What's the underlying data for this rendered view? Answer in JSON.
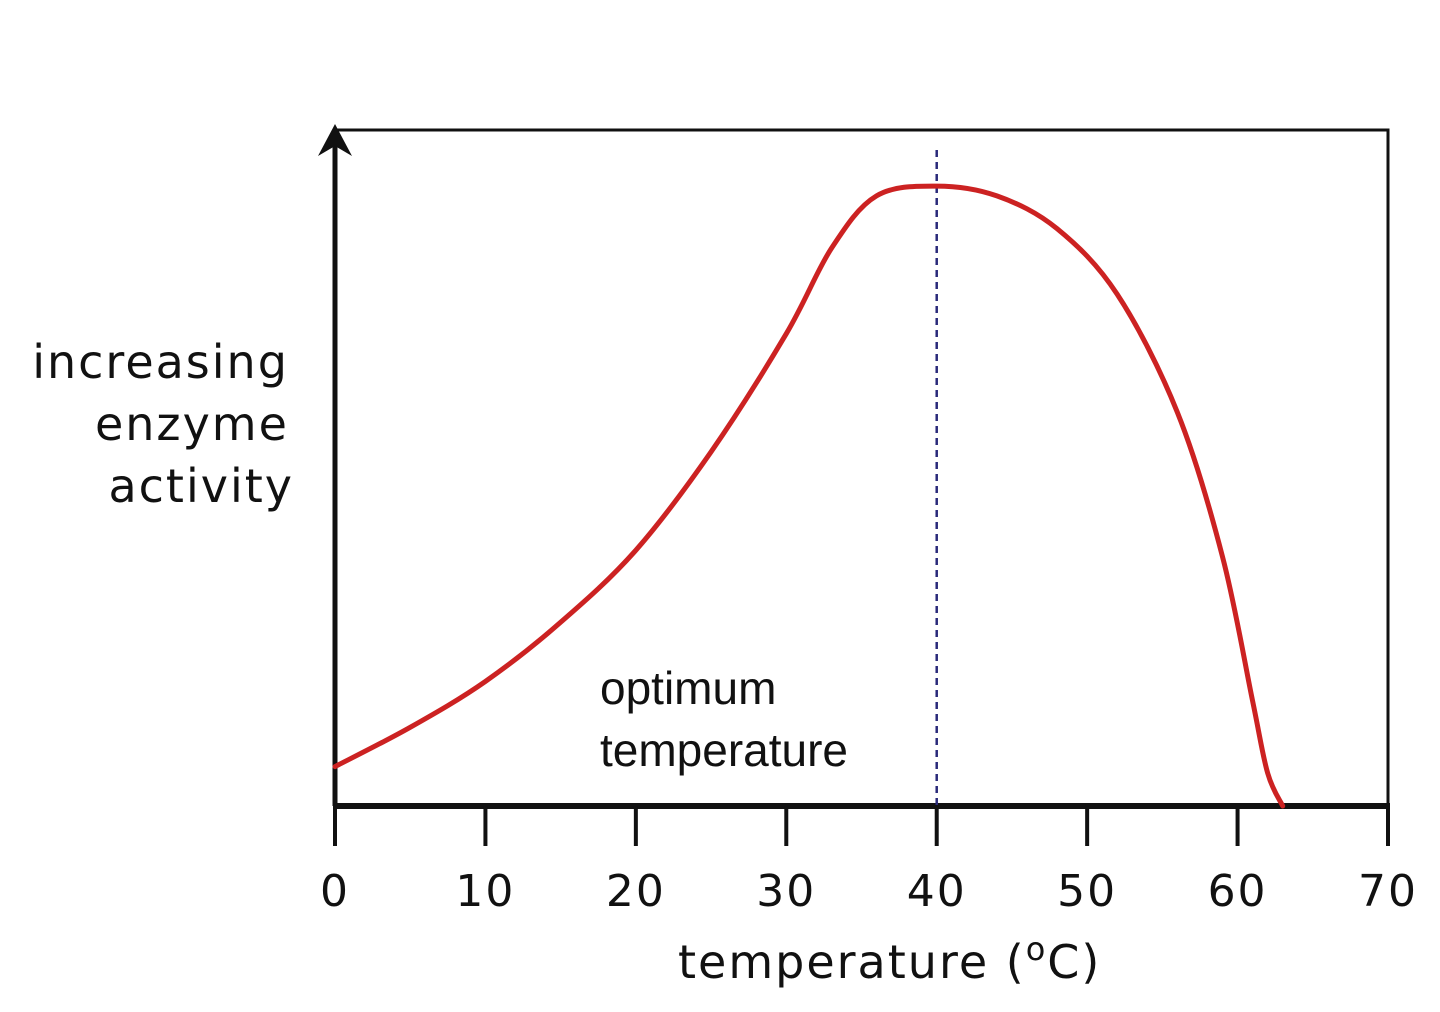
{
  "chart_data": {
    "type": "line",
    "xlabel": {
      "prefix": "temperature (",
      "superscript": "o",
      "suffix": "C)"
    },
    "ylabel_lines": [
      "increasing",
      "enzyme",
      "activity"
    ],
    "xlim": [
      0,
      70
    ],
    "ylim": [
      0,
      100
    ],
    "x_ticks": [
      0,
      10,
      20,
      30,
      40,
      50,
      60,
      70
    ],
    "x_tick_labels": [
      "0",
      "10",
      "20",
      "30",
      "40",
      "50",
      "60",
      "70"
    ],
    "grid": false,
    "series": [
      {
        "color": "#cc2222",
        "points": [
          [
            0,
            6
          ],
          [
            5,
            12
          ],
          [
            10,
            19
          ],
          [
            15,
            28
          ],
          [
            20,
            39
          ],
          [
            25,
            54
          ],
          [
            30,
            72
          ],
          [
            33,
            85
          ],
          [
            36,
            93
          ],
          [
            40,
            94.5
          ],
          [
            44,
            93
          ],
          [
            48,
            88
          ],
          [
            52,
            78
          ],
          [
            56,
            60
          ],
          [
            59,
            38
          ],
          [
            61,
            16
          ],
          [
            62,
            5
          ],
          [
            63,
            0
          ]
        ]
      }
    ],
    "annotation": {
      "lines": [
        "optimum",
        "temperature"
      ],
      "marker_x": 40,
      "marker_color": "#2a2a7a"
    }
  }
}
